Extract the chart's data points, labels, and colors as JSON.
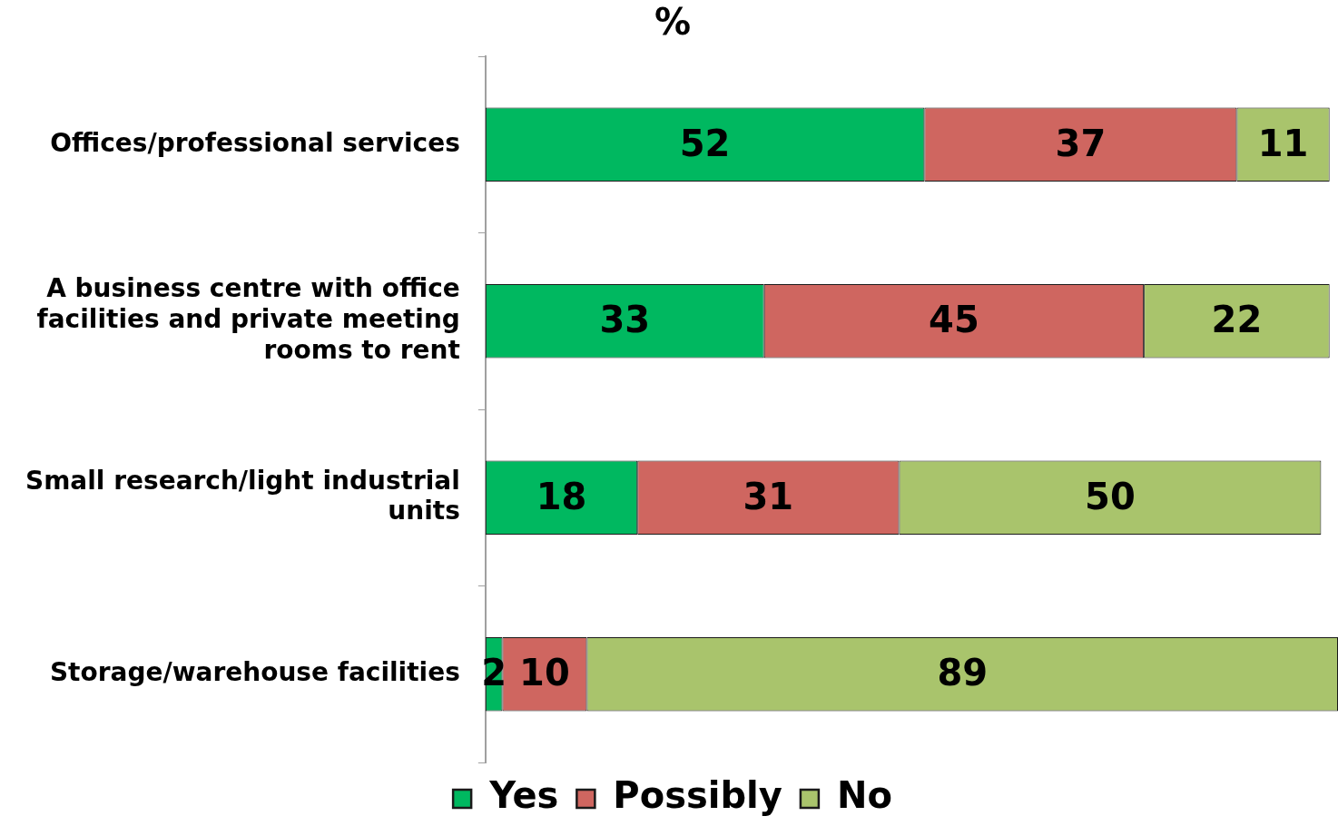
{
  "chart_data": {
    "type": "bar",
    "orientation": "horizontal",
    "stacked": true,
    "title": "%",
    "categories": [
      "Offices/professional services",
      "A business centre with office facilities and private meeting rooms to rent",
      "Small research/light industrial units",
      "Storage/warehouse facilities"
    ],
    "series": [
      {
        "name": "Yes",
        "color": "#00b860",
        "values": [
          52,
          33,
          18,
          2
        ]
      },
      {
        "name": "Possibly",
        "color": "#cf6660",
        "values": [
          37,
          45,
          31,
          10
        ]
      },
      {
        "name": "No",
        "color": "#a9c46c",
        "values": [
          11,
          22,
          50,
          89
        ]
      }
    ],
    "xlim": [
      0,
      101
    ],
    "data_labels": true,
    "legend": "bottom",
    "tick_labels": "y"
  }
}
